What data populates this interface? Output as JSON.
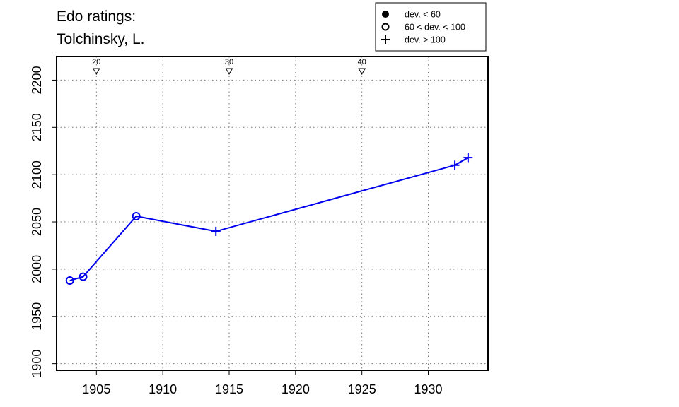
{
  "chart_data": {
    "type": "line",
    "title": "Edo ratings:",
    "subtitle": "Tolchinsky, L.",
    "xlabel": "",
    "ylabel": "",
    "xlim": [
      1902,
      1934.5
    ],
    "ylim": [
      1893,
      2225
    ],
    "xticks": [
      1905,
      1910,
      1915,
      1920,
      1925,
      1930
    ],
    "yticks": [
      1900,
      1950,
      2000,
      2050,
      2100,
      2150,
      2200
    ],
    "grid": true,
    "line_color": "#0000ee",
    "series": [
      {
        "points": [
          {
            "x": 1903,
            "y": 1988,
            "marker": "open-circle"
          },
          {
            "x": 1904,
            "y": 1992,
            "marker": "open-circle"
          },
          {
            "x": 1908,
            "y": 2056,
            "marker": "open-circle"
          },
          {
            "x": 1914,
            "y": 2040,
            "marker": "plus"
          },
          {
            "x": 1932,
            "y": 2110,
            "marker": "plus"
          },
          {
            "x": 1933,
            "y": 2118,
            "marker": "plus"
          }
        ]
      }
    ],
    "age_markers": [
      {
        "x": 1905,
        "label": "20"
      },
      {
        "x": 1915,
        "label": "30"
      },
      {
        "x": 1925,
        "label": "40"
      }
    ],
    "legend": {
      "position": "top-right",
      "entries": [
        {
          "marker": "filled-circle",
          "label": "dev. < 60"
        },
        {
          "marker": "open-circle",
          "label": "60 < dev. < 100"
        },
        {
          "marker": "plus",
          "label": "dev. > 100"
        }
      ]
    }
  }
}
